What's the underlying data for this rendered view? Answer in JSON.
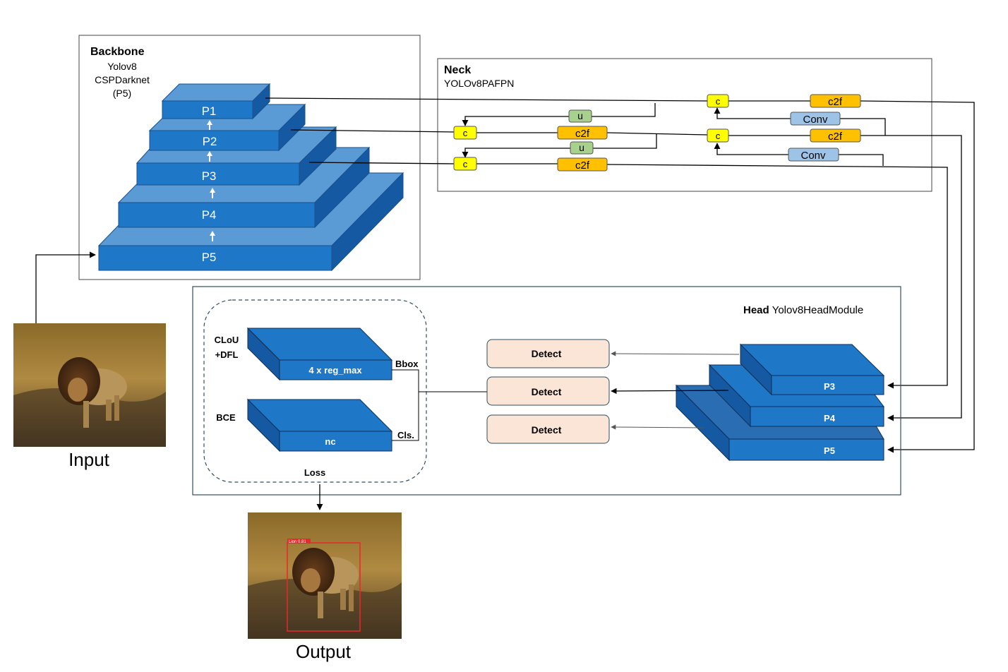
{
  "backbone": {
    "title": "Backbone",
    "subtitle_lines": [
      "Yolov8",
      "CSPDarknet",
      "(P5)"
    ],
    "levels": [
      "P1",
      "P2",
      "P3",
      "P4",
      "P5"
    ]
  },
  "neck": {
    "title": "Neck",
    "subtitle": "YOLOv8PAFPN",
    "concat_label": "c",
    "upsample_label": "u",
    "c2f_label": "c2f",
    "conv_label": "Conv"
  },
  "head": {
    "title": "Head",
    "subtitle": "Yolov8HeadModule",
    "detect_label": "Detect",
    "levels": [
      "P3",
      "P4",
      "P5"
    ]
  },
  "loss": {
    "bbox_loss": [
      "CLoU",
      "+DFL"
    ],
    "cls_loss": "BCE",
    "bbox_block": "4 x reg_max",
    "cls_block": "nc",
    "bbox_tag": "Bbox",
    "cls_tag": "Cls.",
    "title": "Loss"
  },
  "images": {
    "input_caption": "Input",
    "output_caption": "Output",
    "detection_label": "Lion  0.81"
  },
  "colors": {
    "block_front": "#1f77c8",
    "block_top": "#5b9bd5",
    "block_side": "#1559a3",
    "concat": "#ffff00",
    "c2f": "#ffc000",
    "upsample": "#a9d18e",
    "conv": "#9dc3e6",
    "detect": "#fbe5d6",
    "detection_box": "#e8282c"
  }
}
